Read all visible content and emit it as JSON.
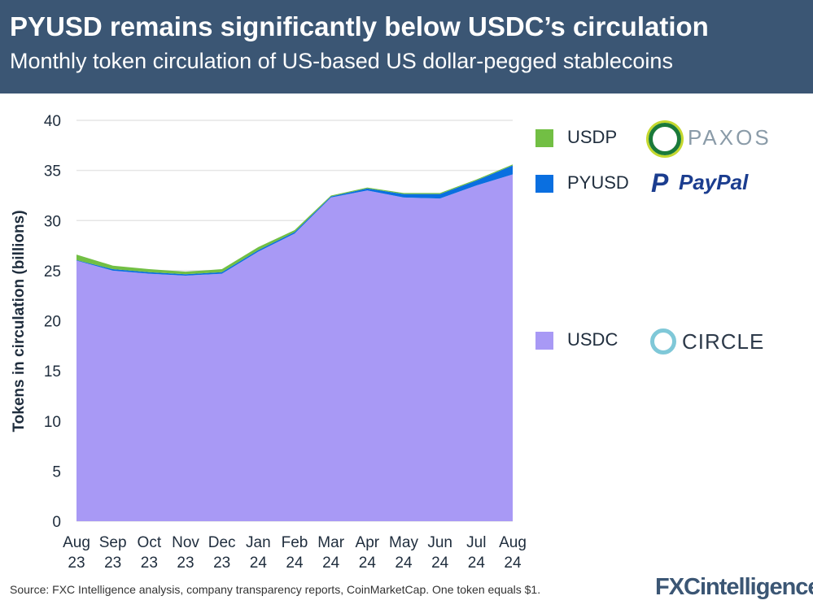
{
  "chart_data": {
    "type": "area",
    "stacked": true,
    "title": "PYUSD remains significantly below USDC’s circulation",
    "subtitle": "Monthly token circulation of US-based US dollar-pegged stablecoins",
    "ylabel": "Tokens in circulation (billions)",
    "xlabel": "",
    "ylim": [
      0,
      40
    ],
    "yticks": [
      0,
      5,
      10,
      15,
      20,
      25,
      30,
      35,
      40
    ],
    "grid": true,
    "legend_position": "right",
    "categories": [
      [
        "Aug",
        "23"
      ],
      [
        "Sep",
        "23"
      ],
      [
        "Oct",
        "23"
      ],
      [
        "Nov",
        "23"
      ],
      [
        "Dec",
        "23"
      ],
      [
        "Jan",
        "24"
      ],
      [
        "Feb",
        "24"
      ],
      [
        "Mar",
        "24"
      ],
      [
        "Apr",
        "24"
      ],
      [
        "May",
        "24"
      ],
      [
        "Jun",
        "24"
      ],
      [
        "Jul",
        "24"
      ],
      [
        "Aug",
        "24"
      ]
    ],
    "series": [
      {
        "name": "USDC",
        "color": "#a899f5",
        "values": [
          26.0,
          25.0,
          24.7,
          24.5,
          24.7,
          26.9,
          28.7,
          32.3,
          33.0,
          32.3,
          32.2,
          33.5,
          34.6
        ]
      },
      {
        "name": "PYUSD",
        "color": "#0a6fe0",
        "values": [
          0.05,
          0.15,
          0.15,
          0.15,
          0.15,
          0.15,
          0.15,
          0.1,
          0.2,
          0.35,
          0.45,
          0.5,
          0.9
        ]
      },
      {
        "name": "USDP",
        "color": "#72bf44",
        "values": [
          0.55,
          0.35,
          0.3,
          0.25,
          0.3,
          0.3,
          0.2,
          0.1,
          0.1,
          0.1,
          0.1,
          0.1,
          0.1
        ]
      }
    ]
  },
  "legend": {
    "usdp": "USDP",
    "pyusd": "PYUSD",
    "usdc": "USDC"
  },
  "logos": {
    "paxos": "PAXOS",
    "paypal": "PayPal",
    "circle": "CIRCLE",
    "fxc": "FXCintelligence"
  },
  "source": "Source: FXC Intelligence analysis, company transparency reports, CoinMarketCap. One token equals $1."
}
